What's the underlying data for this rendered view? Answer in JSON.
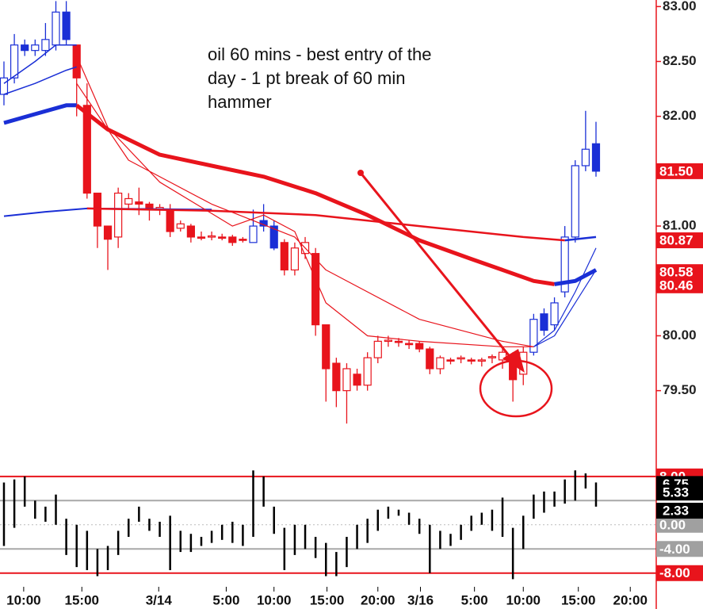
{
  "chart_data": {
    "type": "candlestick",
    "annotation": [
      "oil 60 mins - best entry of the",
      "day - 1 pt break of 60 min",
      "hammer"
    ],
    "xlim": [
      -0.38,
      62.8
    ],
    "xticks": [
      {
        "value": 1.9,
        "label": "10:00"
      },
      {
        "value": 7.5,
        "label": "15:00"
      },
      {
        "value": 14.9,
        "label": "3/14"
      },
      {
        "value": 21.4,
        "label": "5:00"
      },
      {
        "value": 26,
        "label": "10:00"
      },
      {
        "value": 31.1,
        "label": "15:00"
      },
      {
        "value": 36,
        "label": "20:00"
      },
      {
        "value": 40.1,
        "label": "3/16"
      },
      {
        "value": 45.3,
        "label": "5:00"
      },
      {
        "value": 50,
        "label": "10:00"
      },
      {
        "value": 55.3,
        "label": "15:00"
      },
      {
        "value": 60.3,
        "label": "20:00"
      }
    ],
    "ylim": [
      79.1,
      83.06
    ],
    "yticks": [
      {
        "value": 83,
        "label": "83.00"
      },
      {
        "value": 82.5,
        "label": "82.50"
      },
      {
        "value": 82,
        "label": "82.00"
      },
      {
        "value": 81,
        "label": "81.00"
      },
      {
        "value": 80,
        "label": "80.00"
      },
      {
        "value": 79.5,
        "label": "79.50"
      }
    ],
    "price_tags": [
      {
        "value": 81.5,
        "label": "81.50"
      },
      {
        "value": 80.87,
        "label": "80.87"
      },
      {
        "value": 80.58,
        "label": "80.58"
      },
      {
        "value": 80.46,
        "label": "80.46"
      }
    ],
    "tag_color": "#e8141c",
    "open": [
      82.2,
      82.35,
      82.65,
      82.6,
      82.6,
      82.65,
      82.95,
      82.65,
      82.1,
      81.3,
      81.0,
      80.9,
      81.2,
      81.22,
      81.2,
      81.15,
      81.15,
      80.98,
      81.0,
      80.9,
      80.9,
      80.9,
      80.9,
      80.88,
      80.85,
      81.05,
      81.0,
      80.85,
      80.6,
      80.75,
      80.75,
      80.1,
      79.75,
      79.5,
      79.65,
      79.55,
      79.8,
      79.95,
      79.95,
      79.93,
      79.93,
      79.88,
      79.7,
      79.78,
      79.79,
      79.78,
      79.77,
      79.8,
      79.78,
      79.75,
      79.65,
      79.85,
      80.2,
      80.1,
      80.4,
      80.9,
      81.55,
      81.75
    ],
    "high": [
      82.5,
      82.75,
      82.7,
      82.7,
      82.85,
      83.05,
      83.05,
      82.65,
      82.3,
      81.3,
      81.0,
      81.35,
      81.3,
      81.35,
      81.22,
      81.2,
      81.2,
      81.05,
      81.02,
      80.95,
      80.95,
      80.93,
      80.92,
      80.9,
      81.15,
      81.2,
      81.05,
      80.88,
      80.85,
      80.9,
      80.8,
      80.1,
      79.8,
      79.75,
      79.7,
      79.85,
      80.0,
      80.0,
      79.98,
      79.96,
      79.95,
      79.9,
      79.82,
      79.8,
      79.82,
      79.8,
      79.8,
      79.83,
      79.9,
      79.85,
      79.9,
      80.2,
      80.25,
      80.35,
      81.0,
      81.6,
      82.05,
      81.95
    ],
    "low": [
      82.1,
      82.3,
      82.55,
      82.55,
      82.55,
      82.6,
      82.65,
      82.0,
      81.25,
      80.8,
      80.6,
      80.8,
      81.15,
      81.1,
      81.05,
      81.1,
      80.9,
      80.95,
      80.85,
      80.87,
      80.87,
      80.87,
      80.82,
      80.85,
      80.85,
      80.95,
      80.78,
      80.55,
      80.55,
      80.7,
      80.0,
      79.4,
      79.35,
      79.2,
      79.5,
      79.5,
      79.75,
      79.9,
      79.9,
      79.88,
      79.85,
      79.65,
      79.65,
      79.74,
      79.75,
      79.74,
      79.72,
      79.75,
      79.7,
      79.4,
      79.55,
      79.82,
      80.0,
      80.05,
      80.35,
      80.85,
      81.5,
      81.45
    ],
    "close": [
      82.35,
      82.65,
      82.6,
      82.65,
      82.7,
      82.95,
      82.7,
      82.35,
      81.3,
      81.0,
      80.88,
      81.3,
      81.25,
      81.2,
      81.15,
      81.17,
      80.95,
      81.02,
      80.9,
      80.9,
      80.91,
      80.9,
      80.85,
      80.88,
      81.0,
      81.0,
      80.8,
      80.6,
      80.8,
      80.85,
      80.1,
      79.7,
      79.5,
      79.7,
      79.55,
      79.8,
      79.95,
      79.96,
      79.95,
      79.93,
      79.88,
      79.7,
      79.8,
      79.78,
      79.8,
      79.78,
      79.78,
      79.81,
      79.85,
      79.6,
      79.85,
      80.15,
      80.05,
      80.3,
      80.9,
      81.55,
      81.7,
      81.5
    ],
    "candle_colors": [
      "#1a2fd6",
      "#1a2fd6",
      "#1a2fd6",
      "#1a2fd6",
      "#1a2fd6",
      "#1a2fd6",
      "#1a2fd6",
      "#e8141c",
      "#e8141c",
      "#e8141c",
      "#e8141c",
      "#e8141c",
      "#e8141c",
      "#e8141c",
      "#e8141c",
      "#e8141c",
      "#e8141c",
      "#e8141c",
      "#e8141c",
      "#e8141c",
      "#e8141c",
      "#e8141c",
      "#e8141c",
      "#e8141c",
      "#1a2fd6",
      "#1a2fd6",
      "#1a2fd6",
      "#e8141c",
      "#e8141c",
      "#e8141c",
      "#e8141c",
      "#e8141c",
      "#e8141c",
      "#e8141c",
      "#e8141c",
      "#e8141c",
      "#e8141c",
      "#e8141c",
      "#e8141c",
      "#e8141c",
      "#e8141c",
      "#e8141c",
      "#e8141c",
      "#e8141c",
      "#e8141c",
      "#e8141c",
      "#e8141c",
      "#e8141c",
      "#e8141c",
      "#e8141c",
      "#e8141c",
      "#1a2fd6",
      "#1a2fd6",
      "#1a2fd6",
      "#1a2fd6",
      "#1a2fd6",
      "#1a2fd6",
      "#1a2fd6"
    ],
    "lines": [
      {
        "color": "#1a2fd6",
        "width": 5,
        "x": [
          0,
          3,
          6,
          7
        ],
        "values": [
          81.94,
          82.02,
          82.1,
          82.1
        ]
      },
      {
        "color": "#e8141c",
        "width": 5,
        "x": [
          7,
          10,
          15,
          20,
          25,
          30,
          35,
          40,
          45,
          48,
          51,
          53
        ],
        "values": [
          82.1,
          81.88,
          81.65,
          81.55,
          81.45,
          81.3,
          81.1,
          80.87,
          80.7,
          80.6,
          80.5,
          80.47
        ]
      },
      {
        "color": "#1a2fd6",
        "width": 5,
        "x": [
          53,
          55,
          57
        ],
        "values": [
          80.47,
          80.5,
          80.6
        ]
      },
      {
        "color": "#1a2fd6",
        "width": 2,
        "x": [
          0,
          4,
          8,
          20
        ],
        "values": [
          81.09,
          81.13,
          81.16,
          81.15
        ]
      },
      {
        "color": "#e8141c",
        "width": 2.5,
        "x": [
          8,
          20,
          30,
          40,
          50,
          54
        ],
        "values": [
          81.16,
          81.14,
          81.1,
          81.0,
          80.9,
          80.87
        ]
      },
      {
        "color": "#1a2fd6",
        "width": 2.5,
        "x": [
          54,
          57
        ],
        "values": [
          80.87,
          80.9
        ]
      },
      {
        "color": "#e8141c",
        "width": 1.2,
        "x": [
          7,
          10,
          15,
          22,
          25,
          28,
          31,
          35,
          40,
          48,
          51
        ],
        "values": [
          82.55,
          81.9,
          81.4,
          81.0,
          81.1,
          80.95,
          80.3,
          80.0,
          79.95,
          79.9,
          79.9
        ]
      },
      {
        "color": "#1a2fd6",
        "width": 1.2,
        "x": [
          51,
          53,
          55,
          57
        ],
        "values": [
          79.9,
          80.0,
          80.3,
          80.6
        ]
      },
      {
        "color": "#e8141c",
        "width": 1.2,
        "x": [
          7,
          12,
          20,
          28,
          31,
          40,
          48,
          51
        ],
        "values": [
          82.3,
          81.6,
          81.2,
          80.9,
          80.6,
          80.15,
          79.95,
          79.9
        ]
      },
      {
        "color": "#1a2fd6",
        "width": 1.2,
        "x": [
          51,
          53,
          55,
          57
        ],
        "values": [
          79.9,
          80.05,
          80.4,
          80.8
        ]
      },
      {
        "color": "#1a2fd6",
        "width": 1.5,
        "x": [
          0,
          3,
          6,
          7
        ],
        "values": [
          82.2,
          82.3,
          82.42,
          82.45
        ]
      },
      {
        "color": "#1a2fd6",
        "width": 1.5,
        "x": [
          0,
          3,
          5,
          7
        ],
        "values": [
          82.3,
          82.5,
          82.65,
          82.65
        ]
      }
    ],
    "y2lim": [
      -10,
      12.7
    ],
    "y2ticks": [
      {
        "value": 8,
        "label": "8.00"
      },
      {
        "value": 0,
        "label": "0.00"
      },
      {
        "value": -4,
        "label": "-4.00"
      },
      {
        "value": -8,
        "label": "-8.00"
      }
    ],
    "y2tick_colors": [
      "#e8141c",
      "#a0a0a0",
      "#a0a0a0",
      "#e8141c"
    ],
    "osc_tags": [
      {
        "value": 6.75,
        "label": "6.75"
      },
      {
        "value": 5.33,
        "label": "5.33"
      },
      {
        "value": 2.33,
        "label": "2.33"
      }
    ],
    "osc_tag_color": "#000000",
    "levels": [
      {
        "value": 8,
        "color": "#e8141c"
      },
      {
        "value": 4,
        "color": "#a8a8a8"
      },
      {
        "value": 0,
        "color": "#bbbbbb"
      },
      {
        "value": -4,
        "color": "#a8a8a8"
      },
      {
        "value": -8,
        "color": "#e8141c"
      }
    ],
    "osc_high": [
      7,
      7.5,
      8,
      4,
      3,
      5,
      1,
      0,
      -1,
      -4,
      -3.5,
      -1,
      1,
      3,
      1,
      0.5,
      1.5,
      -1,
      -1.5,
      -2,
      -1,
      0,
      0.5,
      0,
      9,
      8,
      3,
      -0.5,
      0,
      0,
      -2,
      -3,
      -4.5,
      -2,
      0,
      1,
      2.5,
      3,
      2.5,
      2,
      1,
      0,
      -1,
      -1.5,
      0,
      1.5,
      2,
      2.5,
      4.5,
      -0.5,
      1.5,
      5,
      5.5,
      5.5,
      7.5,
      9,
      8.5,
      7
    ],
    "osc_low": [
      -3.5,
      -0.5,
      3,
      1,
      0.5,
      0,
      -5,
      -7,
      -7.5,
      -8.5,
      -7.5,
      -5,
      -2,
      0.5,
      -1,
      -2,
      -7.5,
      -4.5,
      -4.5,
      -3.5,
      -3,
      -2.5,
      -3,
      -3.5,
      -2,
      3,
      -1.5,
      -7.5,
      -5,
      -4,
      -5.5,
      -8.5,
      -8.5,
      -7,
      -4,
      -3,
      -1,
      1,
      1.5,
      0,
      -1.5,
      -8,
      -4,
      -3.5,
      -2.5,
      -1,
      0,
      -1,
      -2,
      -9,
      -4,
      1,
      2,
      3,
      3.5,
      4,
      6,
      3
    ]
  }
}
